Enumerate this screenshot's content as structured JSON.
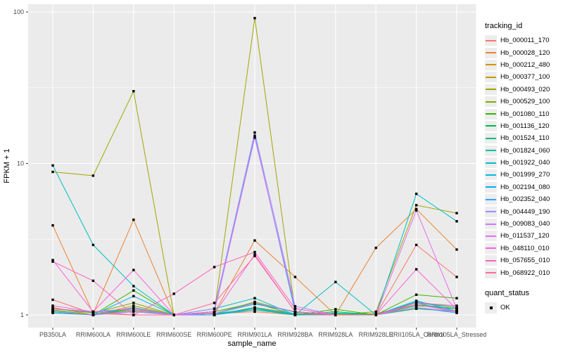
{
  "chart_data": {
    "type": "line",
    "title": "",
    "xlabel": "sample_name",
    "ylabel": "FPKM + 1",
    "y_scale": "log10",
    "ylim": [
      1,
      100
    ],
    "y_ticks": [
      1,
      10,
      100
    ],
    "y_tick_labels": [
      "1",
      "10",
      "100"
    ],
    "y_minor_ticks": [
      3.162,
      31.62
    ],
    "grid": true,
    "legend_position": "right",
    "panel_bg": "#ebebeb",
    "grid_color": "#ffffff",
    "axis_text_color": "#4d4d4d",
    "tick_mark_color": "#333333",
    "point_color": "#000000",
    "categories": [
      "PB350LA",
      "RRIM600LA",
      "RRIM600LE",
      "RRIM600SE",
      "RRIM600PE",
      "RRIM901LA",
      "RRIM928BA",
      "RRIM928LA",
      "RRIM928LE",
      "RRII105LA_Control",
      "RRII105LA_Stressed"
    ],
    "series": [
      {
        "name": "Hb_000011_170",
        "color": "#F8766D",
        "values": [
          1.26,
          1.02,
          1.0,
          1.0,
          1.02,
          1.05,
          1.0,
          1.0,
          1.0,
          2.9,
          1.78
        ]
      },
      {
        "name": "Hb_000028_120",
        "color": "#EA8331",
        "values": [
          3.9,
          1.02,
          4.25,
          1.0,
          1.03,
          3.1,
          1.78,
          1.0,
          2.77,
          5.0,
          2.7
        ]
      },
      {
        "name": "Hb_000212_480",
        "color": "#D89000",
        "values": [
          1.12,
          1.0,
          1.15,
          1.0,
          1.02,
          1.2,
          1.05,
          1.0,
          1.02,
          1.17,
          1.1
        ]
      },
      {
        "name": "Hb_000377_100",
        "color": "#C09B00",
        "values": [
          1.06,
          1.0,
          1.08,
          1.0,
          1.0,
          1.12,
          1.02,
          1.0,
          1.0,
          1.1,
          1.06
        ]
      },
      {
        "name": "Hb_000493_020",
        "color": "#A3A500",
        "values": [
          8.8,
          8.3,
          30.0,
          1.0,
          1.05,
          91.0,
          1.05,
          1.0,
          1.05,
          5.3,
          4.7
        ]
      },
      {
        "name": "Hb_000529_100",
        "color": "#7CAE00",
        "values": [
          1.1,
          1.03,
          1.2,
          1.0,
          1.02,
          1.22,
          1.04,
          1.0,
          1.0,
          1.2,
          1.12
        ]
      },
      {
        "name": "Hb_001080_110",
        "color": "#39B600",
        "values": [
          1.08,
          1.0,
          1.45,
          1.0,
          1.05,
          1.2,
          1.0,
          1.09,
          1.0,
          1.36,
          1.29
        ]
      },
      {
        "name": "Hb_001136_120",
        "color": "#00BB4E",
        "values": [
          1.05,
          1.0,
          1.1,
          1.0,
          1.0,
          1.12,
          1.0,
          1.05,
          1.0,
          1.15,
          1.1
        ]
      },
      {
        "name": "Hb_001524_110",
        "color": "#00BF7D",
        "values": [
          1.03,
          1.0,
          1.05,
          1.0,
          1.0,
          1.08,
          1.0,
          1.02,
          1.0,
          1.1,
          1.05
        ]
      },
      {
        "name": "Hb_001824_060",
        "color": "#00C1A3",
        "values": [
          1.05,
          1.0,
          1.12,
          1.0,
          1.02,
          1.1,
          1.0,
          1.03,
          1.0,
          1.22,
          1.12
        ]
      },
      {
        "name": "Hb_001922_040",
        "color": "#00BFC4",
        "values": [
          9.7,
          2.9,
          1.55,
          1.0,
          1.1,
          1.29,
          1.0,
          1.65,
          1.0,
          6.3,
          4.15
        ]
      },
      {
        "name": "Hb_001999_270",
        "color": "#00BAE0",
        "values": [
          1.05,
          1.0,
          1.33,
          1.0,
          1.05,
          15.2,
          1.05,
          1.0,
          1.0,
          1.2,
          1.05
        ]
      },
      {
        "name": "Hb_002194_080",
        "color": "#00B0F6",
        "values": [
          1.1,
          1.04,
          1.1,
          1.0,
          1.02,
          1.18,
          1.05,
          1.0,
          1.0,
          1.24,
          1.06
        ]
      },
      {
        "name": "Hb_002352_040",
        "color": "#35A2FF",
        "values": [
          1.05,
          1.0,
          1.06,
          1.0,
          1.0,
          1.1,
          1.02,
          1.0,
          1.0,
          1.12,
          1.03
        ]
      },
      {
        "name": "Hb_004449_190",
        "color": "#9590FF",
        "values": [
          1.1,
          1.05,
          1.1,
          1.0,
          1.1,
          16.0,
          1.14,
          1.0,
          1.0,
          1.17,
          1.06
        ]
      },
      {
        "name": "Hb_009083_040",
        "color": "#C77CFF",
        "values": [
          1.06,
          1.0,
          1.05,
          1.0,
          1.02,
          1.2,
          1.05,
          1.0,
          1.0,
          1.12,
          1.05
        ]
      },
      {
        "name": "Hb_011537_120",
        "color": "#E76BF3",
        "values": [
          1.15,
          1.05,
          1.1,
          1.0,
          1.05,
          14.8,
          1.1,
          1.0,
          1.0,
          4.9,
          1.1
        ]
      },
      {
        "name": "Hb_048110_010",
        "color": "#FA62DB",
        "values": [
          2.3,
          1.05,
          1.98,
          1.0,
          1.02,
          2.5,
          1.05,
          1.0,
          1.0,
          2.0,
          1.09
        ]
      },
      {
        "name": "Hb_057655_010",
        "color": "#FF62BC",
        "values": [
          2.25,
          1.68,
          1.0,
          1.38,
          2.07,
          2.6,
          1.1,
          1.0,
          1.0,
          1.2,
          1.15
        ]
      },
      {
        "name": "Hb_068922_010",
        "color": "#FF6A98",
        "values": [
          1.1,
          1.05,
          1.0,
          1.0,
          1.2,
          2.45,
          1.05,
          1.0,
          1.0,
          1.17,
          1.05
        ]
      }
    ]
  },
  "legend": {
    "tracking_title": "tracking_id",
    "quant_title": "quant_status",
    "quant_items": [
      {
        "label": "OK",
        "marker": "black-square-icon"
      }
    ]
  }
}
